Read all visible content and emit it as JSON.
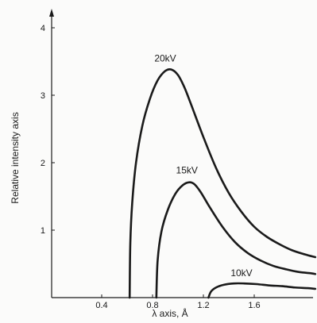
{
  "chart_data": {
    "type": "line",
    "xlabel": "λ axis, Å",
    "ylabel": "Relative intensity axis",
    "xlim": [
      0.0,
      2.1
    ],
    "ylim": [
      0.0,
      4.0
    ],
    "x_ticks": [
      "0.4",
      "0.8",
      "1.2",
      "1.6"
    ],
    "x_tick_values": [
      0.4,
      0.8,
      1.2,
      1.6
    ],
    "y_ticks": [
      "1",
      "2",
      "3",
      "4"
    ],
    "y_tick_values": [
      1,
      2,
      3,
      4
    ],
    "grid": false,
    "series": [
      {
        "name": "20kV",
        "x": [
          0.62,
          0.625,
          0.64,
          0.67,
          0.72,
          0.78,
          0.84,
          0.9,
          0.95,
          1.0,
          1.05,
          1.1,
          1.2,
          1.3,
          1.4,
          1.5,
          1.6,
          1.7,
          1.8,
          1.9,
          2.0,
          2.08
        ],
        "y": [
          0.0,
          0.8,
          1.4,
          2.0,
          2.55,
          2.95,
          3.22,
          3.36,
          3.38,
          3.3,
          3.12,
          2.88,
          2.38,
          1.92,
          1.55,
          1.27,
          1.05,
          0.9,
          0.79,
          0.7,
          0.64,
          0.6
        ],
        "label": "20kV",
        "label_x": 0.9,
        "label_y": 3.5
      },
      {
        "name": "15kV",
        "x": [
          0.83,
          0.84,
          0.87,
          0.92,
          0.98,
          1.04,
          1.09,
          1.13,
          1.18,
          1.25,
          1.35,
          1.45,
          1.55,
          1.65,
          1.75,
          1.85,
          1.95,
          2.05,
          2.08
        ],
        "y": [
          0.0,
          0.55,
          0.98,
          1.3,
          1.54,
          1.67,
          1.71,
          1.68,
          1.56,
          1.34,
          1.05,
          0.82,
          0.66,
          0.55,
          0.47,
          0.42,
          0.38,
          0.36,
          0.35
        ],
        "label": "15kV",
        "label_x": 1.07,
        "label_y": 1.84
      },
      {
        "name": "10kV",
        "x": [
          1.24,
          1.26,
          1.3,
          1.36,
          1.44,
          1.52,
          1.62,
          1.72,
          1.82,
          1.92,
          2.02,
          2.08
        ],
        "y": [
          0.0,
          0.09,
          0.15,
          0.19,
          0.21,
          0.21,
          0.2,
          0.18,
          0.17,
          0.15,
          0.14,
          0.13
        ],
        "label": "10kV",
        "label_x": 1.5,
        "label_y": 0.32
      }
    ]
  }
}
